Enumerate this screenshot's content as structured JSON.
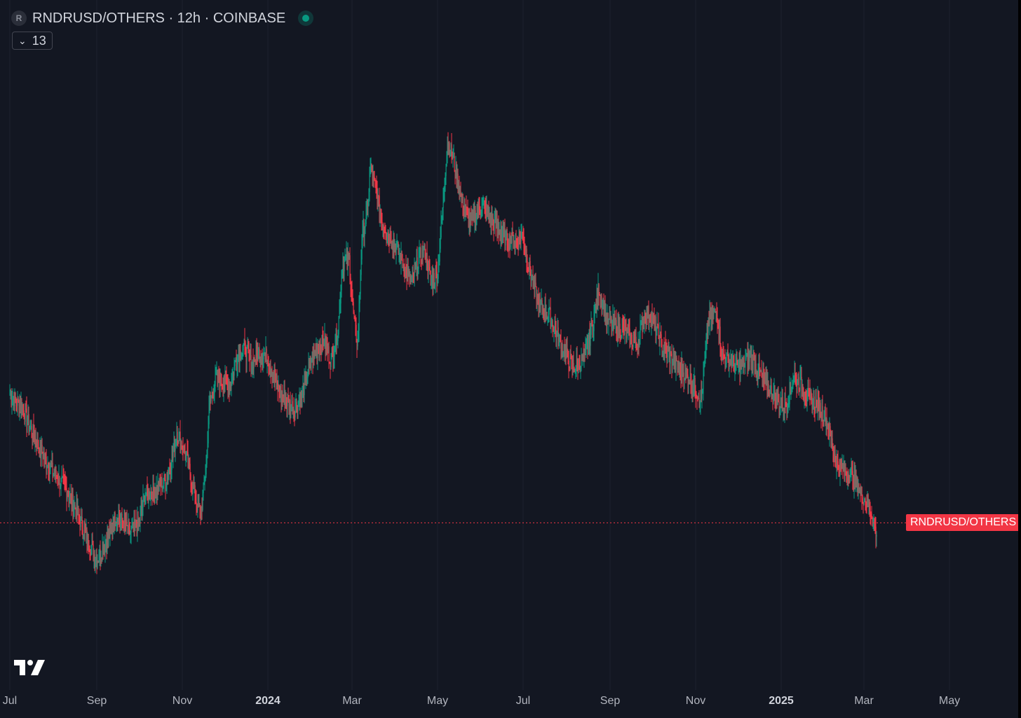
{
  "legend": {
    "symbol_badge": "R",
    "title": "RNDRUSD/OTHERS · 12h · COINBASE",
    "status_icon": "live-status-dot",
    "status_color": "#089981"
  },
  "indicator_toggle": {
    "icon": "chevron-down-icon",
    "count": "13"
  },
  "price_tag": {
    "label": "RNDRUSD/OTHERS",
    "color": "#f23645"
  },
  "colors": {
    "background": "#131722",
    "up": "#089981",
    "down": "#f23645",
    "grid": "#1e222d"
  },
  "chart_data": {
    "type": "candlestick",
    "interval": "12h",
    "x_start": "2023-07-01",
    "x_end": "2025-05-20",
    "x_ticks": [
      {
        "label": "Jul",
        "date": "2023-07-01",
        "bold": false
      },
      {
        "label": "Sep",
        "date": "2023-09-01",
        "bold": false
      },
      {
        "label": "Nov",
        "date": "2023-11-01",
        "bold": false
      },
      {
        "label": "2024",
        "date": "2024-01-01",
        "bold": true
      },
      {
        "label": "Mar",
        "date": "2024-03-01",
        "bold": false
      },
      {
        "label": "May",
        "date": "2024-05-01",
        "bold": false
      },
      {
        "label": "Jul",
        "date": "2024-07-01",
        "bold": false
      },
      {
        "label": "Sep",
        "date": "2024-09-01",
        "bold": false
      },
      {
        "label": "Nov",
        "date": "2024-11-01",
        "bold": false
      },
      {
        "label": "2025",
        "date": "2025-01-01",
        "bold": true
      },
      {
        "label": "Mar",
        "date": "2025-03-01",
        "bold": false
      },
      {
        "label": "May",
        "date": "2025-05-01",
        "bold": false
      }
    ],
    "y_range": [
      0,
      100
    ],
    "grid": "vertical",
    "close_path": [
      [
        "2023-07-01",
        42.2
      ],
      [
        "2023-07-10",
        39.6
      ],
      [
        "2023-07-20",
        33.5
      ],
      [
        "2023-08-01",
        28.0
      ],
      [
        "2023-08-10",
        25.2
      ],
      [
        "2023-08-18",
        21.0
      ],
      [
        "2023-08-25",
        16.4
      ],
      [
        "2023-09-01",
        12.5
      ],
      [
        "2023-09-08",
        16.2
      ],
      [
        "2023-09-15",
        20.7
      ],
      [
        "2023-09-25",
        17.4
      ],
      [
        "2023-10-01",
        19.2
      ],
      [
        "2023-10-05",
        23.9
      ],
      [
        "2023-10-15",
        25.5
      ],
      [
        "2023-10-20",
        26.8
      ],
      [
        "2023-10-25",
        30.9
      ],
      [
        "2023-10-28",
        35.8
      ],
      [
        "2023-11-05",
        30.0
      ],
      [
        "2023-11-10",
        23.8
      ],
      [
        "2023-11-14",
        20.4
      ],
      [
        "2023-11-18",
        29.5
      ],
      [
        "2023-11-20",
        39.7
      ],
      [
        "2023-11-25",
        45.1
      ],
      [
        "2023-12-05",
        43.6
      ],
      [
        "2023-12-10",
        49.1
      ],
      [
        "2023-12-15",
        50.5
      ],
      [
        "2023-12-20",
        47.5
      ],
      [
        "2023-12-25",
        49.6
      ],
      [
        "2024-01-01",
        48.7
      ],
      [
        "2024-01-10",
        42.0
      ],
      [
        "2024-01-20",
        39.6
      ],
      [
        "2024-01-25",
        41.9
      ],
      [
        "2024-02-01",
        48.5
      ],
      [
        "2024-02-10",
        51.7
      ],
      [
        "2024-02-15",
        48.2
      ],
      [
        "2024-02-20",
        53.7
      ],
      [
        "2024-02-23",
        65.4
      ],
      [
        "2024-02-28",
        66.3
      ],
      [
        "2024-03-01",
        59.0
      ],
      [
        "2024-03-03",
        54.0
      ],
      [
        "2024-03-05",
        51.0
      ],
      [
        "2024-03-08",
        70.2
      ],
      [
        "2024-03-12",
        74.8
      ],
      [
        "2024-03-14",
        82.7
      ],
      [
        "2024-03-18",
        78.6
      ],
      [
        "2024-03-22",
        73.3
      ],
      [
        "2024-03-28",
        70.5
      ],
      [
        "2024-04-05",
        66.3
      ],
      [
        "2024-04-12",
        61.9
      ],
      [
        "2024-04-18",
        66.6
      ],
      [
        "2024-04-22",
        67.7
      ],
      [
        "2024-04-26",
        62.6
      ],
      [
        "2024-05-01",
        63.7
      ],
      [
        "2024-05-05",
        77.0
      ],
      [
        "2024-05-08",
        87.6
      ],
      [
        "2024-05-12",
        84.0
      ],
      [
        "2024-05-18",
        76.9
      ],
      [
        "2024-05-24",
        72.6
      ],
      [
        "2024-06-01",
        76.2
      ],
      [
        "2024-06-10",
        72.6
      ],
      [
        "2024-06-18",
        70.2
      ],
      [
        "2024-06-25",
        69.5
      ],
      [
        "2024-07-01",
        70.5
      ],
      [
        "2024-07-05",
        64.9
      ],
      [
        "2024-07-12",
        58.1
      ],
      [
        "2024-07-20",
        56.1
      ],
      [
        "2024-07-28",
        51.1
      ],
      [
        "2024-08-05",
        46.7
      ],
      [
        "2024-08-14",
        48.6
      ],
      [
        "2024-08-20",
        55.0
      ],
      [
        "2024-08-24",
        61.3
      ],
      [
        "2024-08-30",
        55.1
      ],
      [
        "2024-09-10",
        53.6
      ],
      [
        "2024-09-20",
        50.9
      ],
      [
        "2024-09-26",
        56.9
      ],
      [
        "2024-10-01",
        56.0
      ],
      [
        "2024-10-08",
        50.8
      ],
      [
        "2024-10-18",
        47.3
      ],
      [
        "2024-10-28",
        44.9
      ],
      [
        "2024-11-05",
        41.2
      ],
      [
        "2024-11-10",
        55.3
      ],
      [
        "2024-11-16",
        57.0
      ],
      [
        "2024-11-20",
        49.0
      ],
      [
        "2024-12-01",
        47.0
      ],
      [
        "2024-12-10",
        48.6
      ],
      [
        "2024-12-20",
        44.5
      ],
      [
        "2024-12-30",
        40.5
      ],
      [
        "2025-01-05",
        40.2
      ],
      [
        "2025-01-10",
        45.7
      ],
      [
        "2025-01-20",
        41.8
      ],
      [
        "2025-02-01",
        38.6
      ],
      [
        "2025-02-10",
        29.5
      ],
      [
        "2025-02-20",
        27.7
      ],
      [
        "2025-02-28",
        24.0
      ],
      [
        "2025-03-05",
        22.5
      ],
      [
        "2025-03-08",
        19.3
      ],
      [
        "2025-03-10",
        17.0
      ]
    ],
    "last_value": 19.2,
    "last_line_color": "#f23645"
  }
}
